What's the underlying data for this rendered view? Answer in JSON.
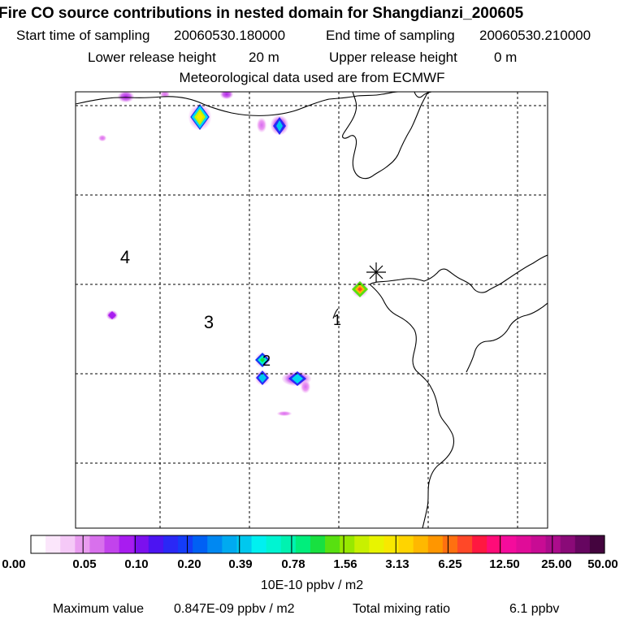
{
  "header": {
    "title": "Fire CO source contributions in nested domain for Shangdianzi_200605",
    "start_label": "Start time of sampling",
    "start_value": "20060530.180000",
    "end_label": "End time of sampling",
    "end_value": "20060530.210000",
    "lower_label": "Lower release height",
    "lower_value": "20 m",
    "upper_label": "Upper release height",
    "upper_value": "0 m",
    "met_line": "Meteorological data used are from ECMWF"
  },
  "map": {
    "contour_labels": [
      "4",
      "3",
      "2",
      "1"
    ],
    "station_marker": "asterisk-station-marker"
  },
  "colorbar": {
    "labels": [
      "0.00",
      "0.05",
      "0.10",
      "0.20",
      "0.39",
      "0.78",
      "1.56",
      "3.13",
      "6.25",
      "12.50",
      "25.00",
      "50.00"
    ],
    "units": "10E-10 ppbv / m2",
    "colors": [
      "#ffffff",
      "#fbe6fb",
      "#f5c9f7",
      "#e99cf0",
      "#d870ec",
      "#c243ec",
      "#a81cf0",
      "#7c10ee",
      "#4c14f2",
      "#2a28f6",
      "#143cf8",
      "#0060f4",
      "#0088f2",
      "#00aaf0",
      "#00c8ee",
      "#00f0f0",
      "#00f4d2",
      "#00f2b0",
      "#00ee7c",
      "#18e040",
      "#58e010",
      "#98e800",
      "#c8f000",
      "#e8f400",
      "#f8e800",
      "#ffd400",
      "#ffb800",
      "#ff9600",
      "#ff7010",
      "#ff4828",
      "#ff1840",
      "#ff0c78",
      "#f40c9c",
      "#e00c98",
      "#c80c94",
      "#ac0c8c",
      "#8a0a78",
      "#660660",
      "#44043e"
    ]
  },
  "footer": {
    "max_label": "Maximum value",
    "max_value": "0.847E-09 ppbv / m2",
    "total_label": "Total mixing ratio",
    "total_value": "6.1 ppbv"
  }
}
